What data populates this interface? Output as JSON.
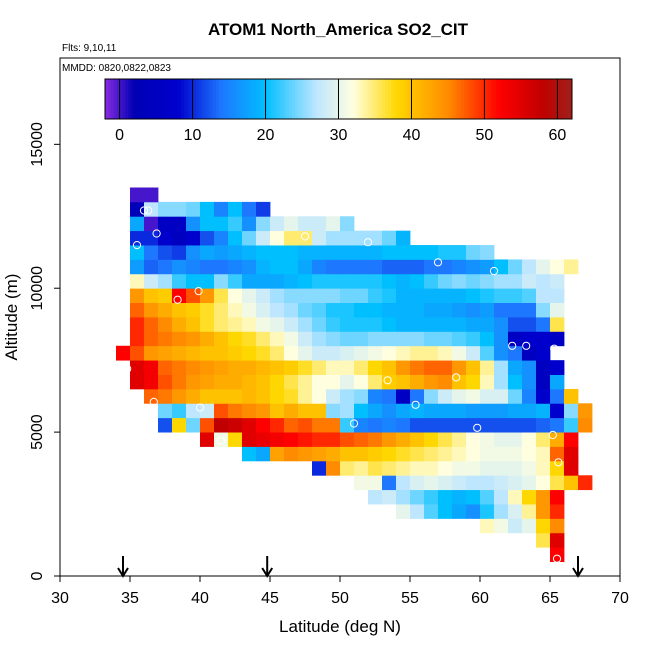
{
  "chart_data": {
    "type": "heatmap",
    "title": "ATOM1 North_America SO2_CIT",
    "subtitle_lines": [
      "Flts: 9,10,11",
      "MMDD: 0820,0822,0823"
    ],
    "xlabel": "Latitude (deg N)",
    "ylabel": "Altitude (m)",
    "xlim": [
      30,
      70
    ],
    "ylim": [
      0,
      18000
    ],
    "x_ticks": [
      30,
      35,
      40,
      45,
      50,
      55,
      60,
      65,
      70
    ],
    "y_ticks": [
      0,
      5000,
      10000,
      15000
    ],
    "colorbar": {
      "range": [
        -2,
        62
      ],
      "ticks": [
        0,
        10,
        20,
        30,
        40,
        50,
        60
      ],
      "palette_stops": [
        {
          "v": -2,
          "c": "#8a2be2"
        },
        {
          "v": 2,
          "c": "#0000b4"
        },
        {
          "v": 8,
          "c": "#0000cd"
        },
        {
          "v": 14,
          "c": "#1e78ff"
        },
        {
          "v": 20,
          "c": "#00bfff"
        },
        {
          "v": 27,
          "c": "#bfe6ff"
        },
        {
          "v": 32,
          "c": "#ffffe0"
        },
        {
          "v": 38,
          "c": "#ffd700"
        },
        {
          "v": 45,
          "c": "#ff8c00"
        },
        {
          "v": 52,
          "c": "#ff0000"
        },
        {
          "v": 58,
          "c": "#c00000"
        },
        {
          "v": 62,
          "c": "#a0201a"
        }
      ]
    },
    "grid_x_start": 34.0,
    "grid_dx": 1.0,
    "grid_dy": 500,
    "rows": [
      {
        "alt": 500,
        "x0": 65,
        "v": [
          52
        ]
      },
      {
        "alt": 1000,
        "x0": 64,
        "v": [
          36,
          55
        ]
      },
      {
        "alt": 1500,
        "x0": 60,
        "v": [
          33,
          31,
          28,
          30,
          38,
          45
        ]
      },
      {
        "alt": 2000,
        "x0": 54,
        "v": [
          30,
          27,
          23,
          20,
          18,
          16,
          21,
          26,
          29,
          34,
          44,
          50
        ]
      },
      {
        "alt": 2500,
        "x0": 52,
        "v": [
          27,
          28,
          26,
          24,
          22,
          20,
          19,
          20,
          23,
          27,
          33,
          38,
          44,
          52
        ]
      },
      {
        "alt": 3000,
        "x0": 51,
        "v": [
          31,
          31,
          14,
          27,
          29,
          30,
          29,
          28,
          27,
          27,
          28,
          29,
          30,
          32,
          36,
          40,
          50
        ]
      },
      {
        "alt": 3500,
        "x0": 48,
        "v": [
          10,
          45,
          35,
          34,
          36,
          35,
          34,
          33,
          33,
          32,
          31,
          31,
          30,
          30,
          30,
          31,
          33,
          38,
          55
        ]
      },
      {
        "alt": 4000,
        "x0": 43,
        "v": [
          20,
          18,
          43,
          45,
          44,
          43,
          42,
          40,
          40,
          39,
          38,
          37,
          36,
          35,
          34,
          33,
          32,
          31,
          31,
          31,
          32,
          33,
          47,
          55
        ]
      },
      {
        "alt": 4500,
        "x0": 40,
        "v": [
          55,
          31,
          38,
          55,
          54,
          53,
          52,
          51,
          50,
          50,
          48,
          47,
          46,
          44,
          42,
          40,
          38,
          36,
          34,
          32,
          31,
          30,
          30,
          32,
          35,
          42,
          52
        ]
      },
      {
        "alt": 5000,
        "x0": 37,
        "v": [
          12,
          38,
          24,
          48,
          58,
          57,
          55,
          52,
          50,
          47,
          48,
          46,
          46,
          22,
          15,
          14,
          15,
          14,
          12,
          12,
          12,
          12,
          12,
          12,
          12,
          12,
          12,
          13,
          14,
          22,
          45
        ]
      },
      {
        "alt": 5500,
        "x0": 37,
        "v": [
          24,
          22,
          27,
          28,
          48,
          46,
          45,
          44,
          40,
          42,
          40,
          40,
          25,
          26,
          20,
          18,
          16,
          18,
          19,
          18,
          18,
          18,
          17,
          17,
          17,
          18,
          18,
          19,
          8,
          25,
          44
        ]
      },
      {
        "alt": 6000,
        "x0": 36,
        "v": [
          47,
          46,
          44,
          42,
          40,
          40,
          40,
          41,
          40,
          38,
          37,
          34,
          32,
          28,
          26,
          25,
          15,
          14,
          6,
          14,
          25,
          28,
          30,
          31,
          29,
          29,
          24,
          15,
          8,
          14,
          40
        ]
      },
      {
        "alt": 6500,
        "x0": 35,
        "v": [
          55,
          53,
          48,
          46,
          44,
          43,
          42,
          42,
          41,
          40,
          38,
          36,
          34,
          32,
          32,
          30,
          32,
          35,
          39,
          40,
          42,
          44,
          45,
          40,
          38,
          33,
          26,
          20,
          16,
          5,
          18
        ]
      },
      {
        "alt": 7000,
        "x0": 35,
        "v": [
          55,
          53,
          47,
          46,
          45,
          44,
          43,
          42,
          42,
          41,
          40,
          39,
          37,
          35,
          33,
          33,
          35,
          38,
          40,
          44,
          46,
          47,
          47,
          44,
          40,
          34,
          26,
          18,
          16,
          5,
          8
        ]
      },
      {
        "alt": 7500,
        "x0": 34,
        "v": [
          52,
          48,
          44,
          43,
          42,
          41,
          40,
          40,
          39,
          38,
          37,
          35,
          32,
          30,
          28,
          28,
          29,
          30,
          31,
          32,
          33,
          34,
          34,
          33,
          31,
          28,
          23,
          16,
          14,
          5,
          8
        ]
      },
      {
        "alt": 8000,
        "x0": 35,
        "v": [
          50,
          47,
          46,
          45,
          44,
          42,
          40,
          38,
          37,
          35,
          33,
          31,
          28,
          26,
          25,
          24,
          24,
          25,
          25,
          25,
          25,
          24,
          24,
          23,
          22,
          20,
          16,
          6,
          8,
          8,
          6
        ]
      },
      {
        "alt": 8500,
        "x0": 35,
        "v": [
          50,
          47,
          45,
          42,
          40,
          37,
          35,
          34,
          33,
          31,
          30,
          28,
          26,
          24,
          22,
          21,
          21,
          21,
          20,
          19,
          19,
          19,
          19,
          19,
          18,
          18,
          16,
          12,
          12,
          14,
          36
        ]
      },
      {
        "alt": 9000,
        "x0": 35,
        "v": [
          47,
          44,
          42,
          40,
          39,
          37,
          35,
          33,
          31,
          29,
          27,
          26,
          24,
          23,
          21,
          21,
          20,
          20,
          19,
          19,
          19,
          18,
          18,
          17,
          16,
          17,
          14,
          14,
          14,
          25,
          30
        ]
      },
      {
        "alt": 9500,
        "x0": 35,
        "v": [
          44,
          40,
          39,
          52,
          48,
          44,
          36,
          32,
          30,
          28,
          26,
          25,
          25,
          25,
          25,
          24,
          24,
          22,
          21,
          19,
          19,
          19,
          19,
          19,
          20,
          21,
          22,
          22,
          23,
          27,
          27
        ]
      },
      {
        "alt": 10000,
        "x0": 35,
        "v": [
          33,
          28,
          26,
          22,
          20,
          20,
          25,
          22,
          18,
          18,
          18,
          19,
          20,
          21,
          21,
          21,
          21,
          21,
          20,
          19,
          20,
          22,
          24,
          25,
          24,
          25,
          26,
          26,
          28,
          27,
          28
        ]
      },
      {
        "alt": 10500,
        "x0": 35,
        "v": [
          17,
          13,
          14,
          16,
          15,
          14,
          14,
          15,
          16,
          19,
          20,
          20,
          18,
          15,
          14,
          14,
          14,
          14,
          13,
          13,
          13,
          14,
          14,
          15,
          16,
          17,
          20,
          24,
          27,
          30,
          32,
          34
        ]
      },
      {
        "alt": 11000,
        "x0": 35,
        "v": [
          20,
          14,
          12,
          11,
          16,
          18,
          17,
          18,
          19,
          20,
          20,
          20,
          19,
          19,
          19,
          19,
          19,
          19,
          20,
          20,
          20,
          20,
          21,
          21,
          24,
          25
        ]
      },
      {
        "alt": 11500,
        "x0": 35,
        "v": [
          10,
          10,
          8,
          5,
          8,
          12,
          15,
          20,
          24,
          28,
          32,
          35,
          35,
          28,
          26,
          26,
          26,
          26,
          24,
          19
        ]
      },
      {
        "alt": 12000,
        "x0": 35,
        "v": [
          18,
          0,
          6,
          6,
          16,
          20,
          20,
          22,
          16,
          25,
          28,
          30,
          28,
          28,
          30,
          25
        ]
      },
      {
        "alt": 12500,
        "x0": 35,
        "v": [
          3,
          27,
          25,
          25,
          24,
          20,
          15,
          20,
          14,
          11
        ]
      },
      {
        "alt": 13000,
        "x0": 35,
        "v": [
          0,
          0
        ]
      }
    ],
    "markers": [
      [
        36.0,
        12700
      ],
      [
        36.3,
        12700
      ],
      [
        36.9,
        11900
      ],
      [
        35.5,
        11500
      ],
      [
        47.5,
        11800
      ],
      [
        52.0,
        11600
      ],
      [
        57.0,
        10900
      ],
      [
        61.0,
        10600
      ],
      [
        39.9,
        9900
      ],
      [
        38.4,
        9600
      ],
      [
        62.3,
        8000
      ],
      [
        63.3,
        8000
      ],
      [
        65.3,
        7900
      ],
      [
        34.8,
        7200
      ],
      [
        53.4,
        6800
      ],
      [
        58.3,
        6900
      ],
      [
        36.7,
        6050
      ],
      [
        40.0,
        5850
      ],
      [
        55.4,
        5950
      ],
      [
        51.0,
        5300
      ],
      [
        59.8,
        5150
      ],
      [
        65.2,
        4900
      ],
      [
        37.9,
        4600
      ],
      [
        41.5,
        4700
      ],
      [
        65.6,
        3950
      ],
      [
        59.3,
        1850
      ],
      [
        65.5,
        600
      ]
    ],
    "flight_arrows": [
      34.5,
      44.8,
      67.0
    ]
  }
}
